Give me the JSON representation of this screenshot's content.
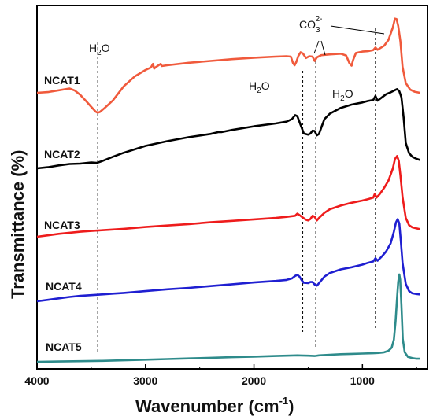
{
  "chart_data": {
    "type": "line",
    "xlabel_main": "Wavenumber (cm",
    "xlabel_sup": "-1",
    "xlabel_end": ")",
    "ylabel": "Transmittance (%)",
    "xlim": [
      4000,
      400
    ],
    "x_reversed": true,
    "xticks": [
      4000,
      3000,
      2000,
      1000
    ],
    "y_ticks_shown": false,
    "grid": false,
    "series": [
      {
        "name": "NCAT1",
        "color": "#f05a3c",
        "points": [
          [
            4000,
            0.0
          ],
          [
            3900,
            0.2
          ],
          [
            3800,
            0.7
          ],
          [
            3700,
            1.2
          ],
          [
            3650,
            0.6
          ],
          [
            3600,
            -0.6
          ],
          [
            3550,
            -2.2
          ],
          [
            3500,
            -3.9
          ],
          [
            3460,
            -5.2
          ],
          [
            3440,
            -5.5
          ],
          [
            3420,
            -5.3
          ],
          [
            3380,
            -4.3
          ],
          [
            3300,
            -2.1
          ],
          [
            3200,
            1.8
          ],
          [
            3100,
            4.5
          ],
          [
            3000,
            6.3
          ],
          [
            2950,
            7.0
          ],
          [
            2930,
            8.0
          ],
          [
            2920,
            6.7
          ],
          [
            2900,
            7.2
          ],
          [
            2860,
            8.0
          ],
          [
            2850,
            7.4
          ],
          [
            2800,
            7.6
          ],
          [
            2600,
            8.3
          ],
          [
            2400,
            8.8
          ],
          [
            2200,
            9.3
          ],
          [
            2000,
            9.7
          ],
          [
            1800,
            10.0
          ],
          [
            1700,
            10.1
          ],
          [
            1660,
            10.0
          ],
          [
            1640,
            8.2
          ],
          [
            1625,
            7.6
          ],
          [
            1610,
            8.5
          ],
          [
            1590,
            10.2
          ],
          [
            1570,
            11.2
          ],
          [
            1550,
            10.9
          ],
          [
            1520,
            9.6
          ],
          [
            1490,
            10.1
          ],
          [
            1460,
            10.0
          ],
          [
            1440,
            8.8
          ],
          [
            1420,
            9.8
          ],
          [
            1380,
            10.4
          ],
          [
            1300,
            10.6
          ],
          [
            1200,
            10.8
          ],
          [
            1150,
            10.3
          ],
          [
            1120,
            8.2
          ],
          [
            1100,
            7.5
          ],
          [
            1085,
            9.1
          ],
          [
            1060,
            11.0
          ],
          [
            1000,
            11.4
          ],
          [
            950,
            11.5
          ],
          [
            900,
            11.8
          ],
          [
            880,
            12.5
          ],
          [
            860,
            11.9
          ],
          [
            800,
            13.0
          ],
          [
            760,
            14.6
          ],
          [
            720,
            18.0
          ],
          [
            700,
            20.5
          ],
          [
            685,
            20.4
          ],
          [
            670,
            18.5
          ],
          [
            650,
            14.2
          ],
          [
            630,
            7.2
          ],
          [
            600,
            2.7
          ],
          [
            560,
            0.9
          ],
          [
            520,
            0.3
          ],
          [
            470,
            0.0
          ]
        ]
      },
      {
        "name": "NCAT2",
        "color": "#000000",
        "points": [
          [
            4000,
            0.0
          ],
          [
            3900,
            0.3
          ],
          [
            3800,
            0.8
          ],
          [
            3700,
            1.2
          ],
          [
            3600,
            1.3
          ],
          [
            3500,
            1.6
          ],
          [
            3450,
            1.5
          ],
          [
            3400,
            2.0
          ],
          [
            3300,
            3.2
          ],
          [
            3200,
            4.3
          ],
          [
            3000,
            6.2
          ],
          [
            2800,
            7.5
          ],
          [
            2600,
            8.6
          ],
          [
            2400,
            9.5
          ],
          [
            2330,
            10.0
          ],
          [
            2300,
            10.0
          ],
          [
            2200,
            10.6
          ],
          [
            2000,
            11.6
          ],
          [
            1800,
            12.4
          ],
          [
            1700,
            12.9
          ],
          [
            1650,
            13.6
          ],
          [
            1620,
            14.7
          ],
          [
            1600,
            14.4
          ],
          [
            1580,
            12.8
          ],
          [
            1560,
            11.2
          ],
          [
            1540,
            9.6
          ],
          [
            1500,
            9.3
          ],
          [
            1480,
            9.6
          ],
          [
            1460,
            10.4
          ],
          [
            1440,
            10.3
          ],
          [
            1420,
            9.1
          ],
          [
            1400,
            9.5
          ],
          [
            1380,
            11.2
          ],
          [
            1350,
            13.6
          ],
          [
            1300,
            15.1
          ],
          [
            1200,
            16.7
          ],
          [
            1100,
            17.6
          ],
          [
            1000,
            18.2
          ],
          [
            950,
            18.6
          ],
          [
            900,
            18.9
          ],
          [
            880,
            20.0
          ],
          [
            860,
            18.7
          ],
          [
            820,
            19.6
          ],
          [
            780,
            20.5
          ],
          [
            740,
            21.0
          ],
          [
            700,
            21.6
          ],
          [
            680,
            21.9
          ],
          [
            660,
            21.3
          ],
          [
            640,
            19.6
          ],
          [
            620,
            14.0
          ],
          [
            600,
            7.0
          ],
          [
            570,
            4.2
          ],
          [
            540,
            3.2
          ],
          [
            500,
            2.6
          ],
          [
            470,
            2.3
          ]
        ]
      },
      {
        "name": "NCAT3",
        "color": "#ee1c1c",
        "points": [
          [
            4000,
            0.0
          ],
          [
            3900,
            0.4
          ],
          [
            3800,
            0.8
          ],
          [
            3700,
            1.1
          ],
          [
            3600,
            1.4
          ],
          [
            3500,
            1.6
          ],
          [
            3400,
            1.8
          ],
          [
            3300,
            2.0
          ],
          [
            3200,
            2.2
          ],
          [
            3000,
            2.7
          ],
          [
            2800,
            3.1
          ],
          [
            2600,
            3.5
          ],
          [
            2400,
            4.0
          ],
          [
            2200,
            4.4
          ],
          [
            2000,
            4.8
          ],
          [
            1800,
            5.2
          ],
          [
            1700,
            5.5
          ],
          [
            1620,
            5.8
          ],
          [
            1600,
            6.4
          ],
          [
            1580,
            6.0
          ],
          [
            1550,
            5.3
          ],
          [
            1520,
            4.7
          ],
          [
            1500,
            4.5
          ],
          [
            1480,
            4.9
          ],
          [
            1460,
            5.8
          ],
          [
            1440,
            5.5
          ],
          [
            1420,
            4.5
          ],
          [
            1400,
            5.2
          ],
          [
            1350,
            6.6
          ],
          [
            1300,
            7.6
          ],
          [
            1200,
            8.6
          ],
          [
            1100,
            9.4
          ],
          [
            1000,
            10.0
          ],
          [
            950,
            10.4
          ],
          [
            900,
            10.8
          ],
          [
            885,
            11.9
          ],
          [
            870,
            10.8
          ],
          [
            840,
            11.8
          ],
          [
            800,
            13.5
          ],
          [
            760,
            15.5
          ],
          [
            720,
            18.8
          ],
          [
            700,
            21.5
          ],
          [
            680,
            22.3
          ],
          [
            665,
            21.0
          ],
          [
            650,
            17.0
          ],
          [
            630,
            11.0
          ],
          [
            600,
            5.2
          ],
          [
            570,
            3.2
          ],
          [
            540,
            2.6
          ],
          [
            500,
            2.3
          ],
          [
            470,
            2.1
          ]
        ]
      },
      {
        "name": "NCAT4",
        "color": "#1f1fd1",
        "points": [
          [
            4000,
            0.0
          ],
          [
            3900,
            0.4
          ],
          [
            3800,
            0.8
          ],
          [
            3700,
            1.2
          ],
          [
            3600,
            1.5
          ],
          [
            3500,
            1.7
          ],
          [
            3400,
            1.9
          ],
          [
            3300,
            2.1
          ],
          [
            3200,
            2.3
          ],
          [
            3000,
            2.8
          ],
          [
            2800,
            3.3
          ],
          [
            2600,
            3.7
          ],
          [
            2400,
            4.2
          ],
          [
            2200,
            4.7
          ],
          [
            2000,
            5.2
          ],
          [
            1800,
            5.6
          ],
          [
            1700,
            5.9
          ],
          [
            1650,
            6.3
          ],
          [
            1620,
            7.0
          ],
          [
            1600,
            7.3
          ],
          [
            1580,
            6.8
          ],
          [
            1560,
            5.8
          ],
          [
            1540,
            5.1
          ],
          [
            1500,
            5.0
          ],
          [
            1480,
            5.3
          ],
          [
            1460,
            5.3
          ],
          [
            1440,
            4.6
          ],
          [
            1420,
            4.3
          ],
          [
            1400,
            5.0
          ],
          [
            1350,
            6.8
          ],
          [
            1300,
            7.8
          ],
          [
            1200,
            8.8
          ],
          [
            1100,
            9.4
          ],
          [
            1000,
            10.1
          ],
          [
            950,
            10.6
          ],
          [
            900,
            11.0
          ],
          [
            880,
            11.9
          ],
          [
            860,
            11.2
          ],
          [
            820,
            12.4
          ],
          [
            780,
            13.8
          ],
          [
            740,
            16.0
          ],
          [
            710,
            19.2
          ],
          [
            690,
            21.8
          ],
          [
            675,
            22.7
          ],
          [
            660,
            21.5
          ],
          [
            645,
            16.5
          ],
          [
            630,
            10.6
          ],
          [
            600,
            4.8
          ],
          [
            570,
            2.8
          ],
          [
            540,
            2.2
          ],
          [
            500,
            2.0
          ],
          [
            470,
            1.9
          ]
        ]
      },
      {
        "name": "NCAT5",
        "color": "#2e8b8b",
        "points": [
          [
            4000,
            0.0
          ],
          [
            3800,
            0.1
          ],
          [
            3600,
            0.2
          ],
          [
            3400,
            0.3
          ],
          [
            3200,
            0.5
          ],
          [
            3000,
            0.7
          ],
          [
            2800,
            0.9
          ],
          [
            2600,
            1.1
          ],
          [
            2400,
            1.3
          ],
          [
            2200,
            1.5
          ],
          [
            2000,
            1.7
          ],
          [
            1800,
            1.9
          ],
          [
            1600,
            2.1
          ],
          [
            1500,
            2.0
          ],
          [
            1440,
            1.9
          ],
          [
            1400,
            2.1
          ],
          [
            1300,
            2.3
          ],
          [
            1200,
            2.5
          ],
          [
            1100,
            2.6
          ],
          [
            1000,
            2.7
          ],
          [
            900,
            2.8
          ],
          [
            850,
            2.9
          ],
          [
            800,
            3.1
          ],
          [
            760,
            3.6
          ],
          [
            730,
            4.6
          ],
          [
            710,
            7.2
          ],
          [
            695,
            13.0
          ],
          [
            680,
            21.0
          ],
          [
            670,
            26.0
          ],
          [
            660,
            28.5
          ],
          [
            652,
            26.8
          ],
          [
            640,
            18.5
          ],
          [
            628,
            7.5
          ],
          [
            610,
            3.1
          ],
          [
            580,
            1.6
          ],
          [
            540,
            1.2
          ],
          [
            500,
            1.0
          ],
          [
            470,
            1.0
          ]
        ]
      }
    ],
    "dashed_lines": [
      3440,
      1550,
      1430,
      880
    ],
    "annotations": [
      {
        "text": "H",
        "sub": "2",
        "tail": "O"
      },
      {
        "text": "H",
        "sub": "2",
        "tail": "O"
      },
      {
        "text": "H",
        "sub": "2",
        "tail": "O"
      },
      {
        "text": "CO",
        "sub": "3",
        "sup": "2-"
      }
    ]
  }
}
